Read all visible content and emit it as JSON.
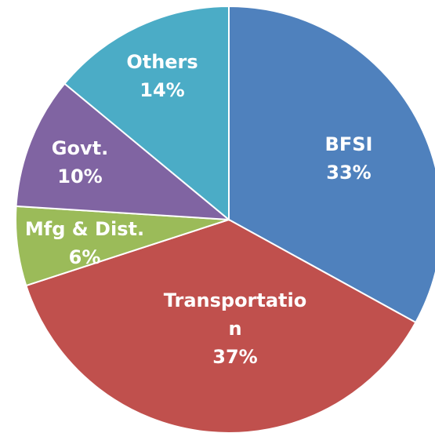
{
  "chart_data": {
    "type": "pie",
    "categories": [
      "BFSI",
      "Transportation",
      "Mfg & Dist.",
      "Govt.",
      "Others"
    ],
    "values": [
      33,
      37,
      6,
      10,
      14
    ],
    "value_labels": [
      "33%",
      "37%",
      "6%",
      "10%",
      "14%"
    ],
    "colors": [
      "#4f81bd",
      "#c0504d",
      "#9bbb59",
      "#8064a2",
      "#4bacc6"
    ]
  }
}
